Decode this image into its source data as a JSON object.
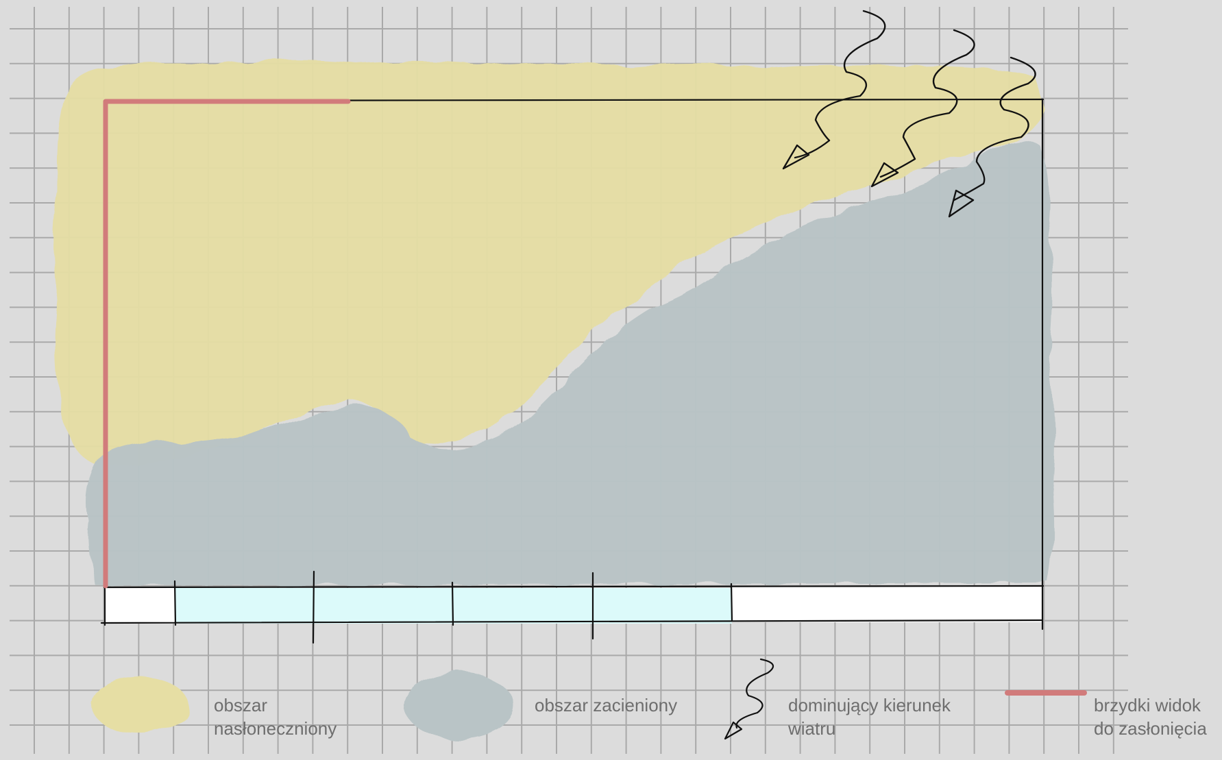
{
  "diagram": {
    "colors": {
      "background": "#dcdcdc",
      "grid": "#a9a9a9",
      "sunny_area": "#e6dea4",
      "shaded_area": "#b9c4c6",
      "ugly_view": "#d17b7b",
      "strip_light": "#dcfafa",
      "strip_white": "#ffffff",
      "ink": "#111111"
    },
    "icons": {
      "wind": "wind-arrow-icon",
      "ugly_view": "red-line-icon"
    }
  },
  "legend": {
    "sunny": {
      "line1": "obszar",
      "line2": "nasłoneczniony"
    },
    "shaded": {
      "line1": "obszar zacieniony"
    },
    "wind": {
      "line1": "dominujący kierunek",
      "line2": "wiatru"
    },
    "ugly_view": {
      "line1": "brzydki widok",
      "line2": "do zasłonięcia"
    }
  }
}
